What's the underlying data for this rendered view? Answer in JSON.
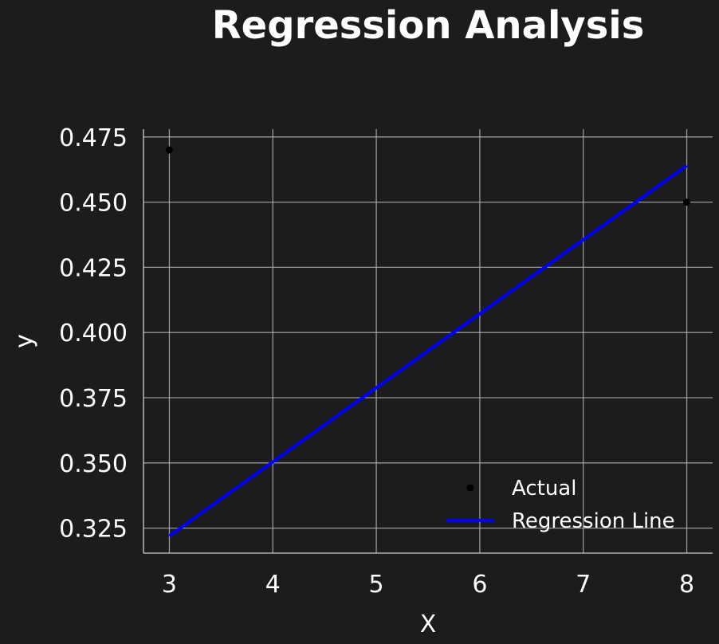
{
  "chart_data": {
    "type": "scatter",
    "title": "Regression Analysis",
    "xlabel": "X",
    "ylabel": "y",
    "xlim": [
      2.75,
      8.25
    ],
    "ylim": [
      0.3154,
      0.478
    ],
    "x_ticks": [
      3,
      4,
      5,
      6,
      7,
      8
    ],
    "y_ticks": [
      0.325,
      0.35,
      0.375,
      0.4,
      0.425,
      0.45,
      0.475
    ],
    "x_tick_labels": [
      "3",
      "4",
      "5",
      "6",
      "7",
      "8"
    ],
    "y_tick_labels": [
      "0.325",
      "0.350",
      "0.375",
      "0.400",
      "0.425",
      "0.450",
      "0.475"
    ],
    "grid": true,
    "legend_position": "lower-right",
    "series": [
      {
        "name": "Actual",
        "kind": "scatter",
        "color": "#000000",
        "points": [
          {
            "x": 3,
            "y": 0.47
          },
          {
            "x": 8,
            "y": 0.45
          }
        ]
      },
      {
        "name": "Regression Line",
        "kind": "line",
        "color": "#0000ff",
        "points": [
          {
            "x": 3,
            "y": 0.322
          },
          {
            "x": 8,
            "y": 0.464
          }
        ]
      }
    ]
  }
}
